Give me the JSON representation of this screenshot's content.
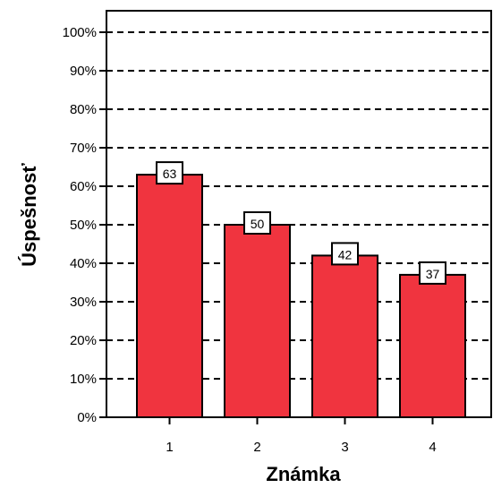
{
  "chart_data": {
    "type": "bar",
    "categories": [
      "1",
      "2",
      "3",
      "4"
    ],
    "values": [
      63,
      50,
      42,
      37
    ],
    "data_labels": [
      "63",
      "50",
      "42",
      "37"
    ],
    "xlabel": "Známka",
    "ylabel": "Úspešnosť",
    "ylim": [
      0,
      100
    ],
    "yticks": [
      "0%",
      "10%",
      "20%",
      "30%",
      "40%",
      "50%",
      "60%",
      "70%",
      "80%",
      "90%",
      "100%"
    ],
    "grid": "horizontal dashed",
    "colors": {
      "bar": "#f0343f",
      "stroke": "#000000"
    }
  }
}
